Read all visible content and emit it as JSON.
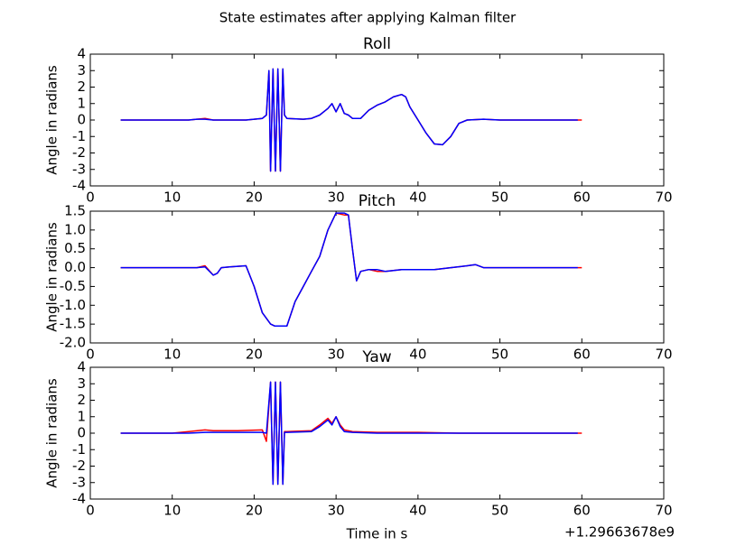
{
  "suptitle": "State estimates after applying Kalman filter",
  "chart_data": [
    {
      "type": "line",
      "title": "Roll",
      "y_label": "Angle in radians",
      "xlim": [
        0,
        70
      ],
      "xticks": [
        0,
        10,
        20,
        30,
        40,
        50,
        60,
        70
      ],
      "ylim": [
        -4,
        4
      ],
      "yticks": [
        -4,
        -3,
        -2,
        -1,
        0,
        1,
        2,
        3,
        4
      ],
      "x": [
        3.7,
        10,
        12,
        13,
        14,
        15,
        17,
        19,
        21,
        21.5,
        21.8,
        22.0,
        22.3,
        22.6,
        22.9,
        23.2,
        23.5,
        23.7,
        24,
        26,
        27,
        28,
        29,
        29.5,
        30,
        30.5,
        31,
        31.5,
        32,
        33,
        34,
        35,
        36,
        37,
        38,
        38.5,
        39,
        40,
        41,
        42,
        43,
        44,
        45,
        46,
        48,
        50,
        55,
        59.5,
        60
      ],
      "series": [
        {
          "color": "#ff0000",
          "values": [
            0,
            0,
            0,
            0.05,
            0.1,
            0,
            0,
            0,
            0.1,
            0.3,
            3.0,
            -3.1,
            3.1,
            -3.1,
            3.1,
            -3.1,
            3.1,
            0.3,
            0.1,
            0.05,
            0.1,
            0.3,
            0.7,
            1.0,
            0.5,
            1.0,
            0.4,
            0.3,
            0.1,
            0.1,
            0.6,
            0.9,
            1.1,
            1.4,
            1.55,
            1.4,
            0.8,
            0,
            -0.8,
            -1.45,
            -1.5,
            -1.0,
            -0.2,
            0,
            0.05,
            0,
            0,
            0,
            0
          ]
        },
        {
          "color": "#0000ff",
          "values": [
            0,
            0,
            0,
            0.05,
            0.05,
            0,
            0,
            0,
            0.1,
            0.3,
            3.0,
            -3.1,
            3.1,
            -3.1,
            3.1,
            -3.1,
            3.1,
            0.3,
            0.1,
            0.05,
            0.1,
            0.3,
            0.7,
            1.0,
            0.5,
            1.0,
            0.4,
            0.3,
            0.1,
            0.1,
            0.6,
            0.9,
            1.1,
            1.4,
            1.55,
            1.4,
            0.8,
            0,
            -0.8,
            -1.45,
            -1.5,
            -1.0,
            -0.2,
            0,
            0.05,
            0,
            0,
            0,
            null
          ]
        }
      ]
    },
    {
      "type": "line",
      "title": "Pitch",
      "y_label": "Angle in radians",
      "xlim": [
        0,
        70
      ],
      "xticks": [
        0,
        10,
        20,
        30,
        40,
        50,
        60,
        70
      ],
      "ylim": [
        -2,
        1.5
      ],
      "yticks": [
        {
          "value": -2,
          "label": "-2.0"
        },
        -1.5,
        {
          "value": -1,
          "label": "-1.0"
        },
        -0.5,
        {
          "value": 0,
          "label": "0.0"
        },
        0.5,
        {
          "value": 1,
          "label": "1.0"
        },
        1.5
      ],
      "x": [
        3.7,
        10,
        13,
        14,
        15,
        15.5,
        16,
        17,
        19,
        20,
        21,
        22,
        22.5,
        23,
        24,
        25,
        26,
        27,
        28,
        29,
        30,
        31,
        31.5,
        32,
        32.5,
        33,
        34,
        35,
        36,
        38,
        40,
        42,
        44,
        46,
        47,
        48,
        50,
        55,
        59.5,
        60
      ],
      "series": [
        {
          "color": "#ff0000",
          "values": [
            0,
            0,
            0,
            0.05,
            -0.2,
            -0.15,
            0,
            0.02,
            0.05,
            -0.5,
            -1.2,
            -1.5,
            -1.55,
            -1.55,
            -1.55,
            -0.9,
            -0.5,
            -0.1,
            0.3,
            1.0,
            1.45,
            1.4,
            1.4,
            0.5,
            -0.35,
            -0.1,
            -0.05,
            -0.1,
            -0.1,
            -0.05,
            -0.05,
            -0.05,
            0,
            0.05,
            0.08,
            0,
            0,
            0,
            0,
            0
          ]
        },
        {
          "color": "#0000ff",
          "values": [
            0,
            0,
            0,
            0.02,
            -0.2,
            -0.15,
            0,
            0.02,
            0.05,
            -0.5,
            -1.2,
            -1.5,
            -1.55,
            -1.55,
            -1.55,
            -0.9,
            -0.5,
            -0.1,
            0.3,
            1.0,
            1.45,
            1.45,
            1.4,
            0.5,
            -0.35,
            -0.1,
            -0.05,
            -0.05,
            -0.1,
            -0.05,
            -0.05,
            -0.05,
            0,
            0.05,
            0.08,
            0,
            0,
            0,
            0,
            null
          ]
        }
      ]
    },
    {
      "type": "line",
      "title": "Yaw",
      "y_label": "Angle in radians",
      "x_label": "Time in s",
      "x_offset": "+1.29663678e9",
      "xlim": [
        0,
        70
      ],
      "xticks": [
        0,
        10,
        20,
        30,
        40,
        50,
        60,
        70
      ],
      "ylim": [
        -4,
        4
      ],
      "yticks": [
        -4,
        -3,
        -2,
        -1,
        0,
        1,
        2,
        3,
        4
      ],
      "x": [
        3.7,
        10,
        12,
        14,
        15,
        18,
        21,
        21.5,
        22,
        22.3,
        22.6,
        22.9,
        23.2,
        23.5,
        23.7,
        24,
        27,
        28,
        29,
        29.5,
        30,
        30.5,
        31,
        32,
        35,
        40,
        45,
        50,
        55,
        59.5,
        60
      ],
      "series": [
        {
          "color": "#ff0000",
          "values": [
            0,
            0,
            0.1,
            0.2,
            0.15,
            0.15,
            0.2,
            -0.5,
            3.1,
            -3.1,
            3.1,
            -3.1,
            3.1,
            -3.1,
            0.1,
            0.1,
            0.15,
            0.5,
            0.9,
            0.6,
            1.0,
            0.5,
            0.2,
            0.1,
            0.05,
            0.05,
            0,
            0,
            0,
            0,
            0
          ]
        },
        {
          "color": "#0000ff",
          "values": [
            0,
            0,
            0,
            0.05,
            0.05,
            0.05,
            0.05,
            0,
            3.1,
            -3.1,
            3.1,
            -3.1,
            3.1,
            -3.1,
            0.05,
            0.05,
            0.1,
            0.4,
            0.8,
            0.5,
            1.0,
            0.4,
            0.1,
            0.05,
            0,
            0,
            0,
            0,
            0,
            0,
            null
          ]
        }
      ]
    }
  ]
}
